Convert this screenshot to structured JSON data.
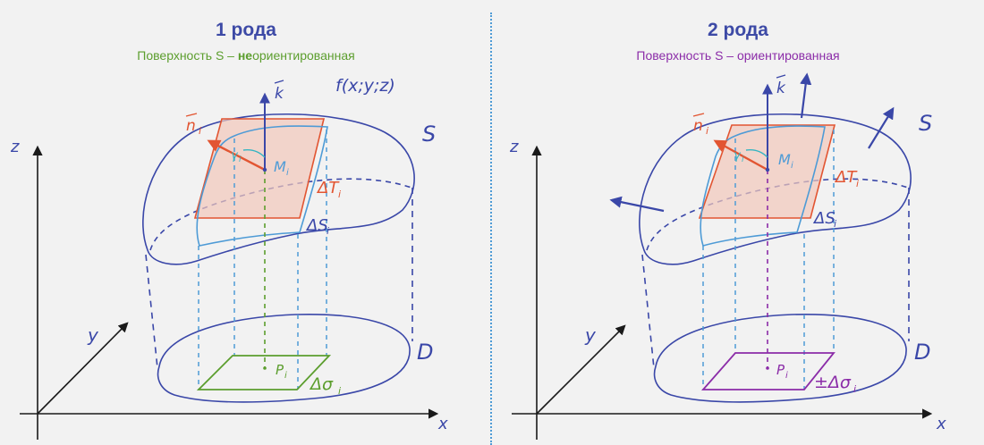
{
  "panels": [
    {
      "title": "1 рода",
      "subtitle_pre": "Поверхность S – ",
      "subtitle_bold": "не",
      "subtitle_post": "ориентированная",
      "labels": {
        "k": "k",
        "n": "n",
        "ni_sub": "i",
        "f": "f(x;y;z)",
        "S": "S",
        "gamma": "γ",
        "gamma_sub": "i",
        "M": "M",
        "M_sub": "i",
        "T": "ΔT",
        "T_sub": "i",
        "dS": "ΔS",
        "dS_sub": "i",
        "P": "P",
        "P_sub": "i",
        "D": "D",
        "sigma": "Δσ",
        "sigma_sub": "i",
        "x": "x",
        "y": "y",
        "z": "z"
      }
    },
    {
      "title": "2 рода",
      "subtitle": "Поверхность S – ориентированная",
      "labels": {
        "k": "k",
        "n": "n",
        "ni_sub": "i",
        "S": "S",
        "gamma": "γ",
        "gamma_sub": "i",
        "M": "M",
        "M_sub": "i",
        "T": "ΔT",
        "T_sub": "i",
        "dS": "ΔS",
        "dS_sub": "i",
        "P": "P",
        "P_sub": "i",
        "D": "D",
        "sigma": "±Δσ",
        "sigma_sub": "i",
        "x": "x",
        "y": "y",
        "z": "z"
      }
    }
  ],
  "colors": {
    "title": "#3d4aa6",
    "surface": "#3a47a8",
    "tangent": "#e25532",
    "tangent_fill": "#f2c7bb",
    "patch": "#4e9bd6",
    "projection_green": "#5c9e2e",
    "projection_purple": "#8b2ca8",
    "gamma": "#35b5c2",
    "axes": "#1a1a1a"
  }
}
